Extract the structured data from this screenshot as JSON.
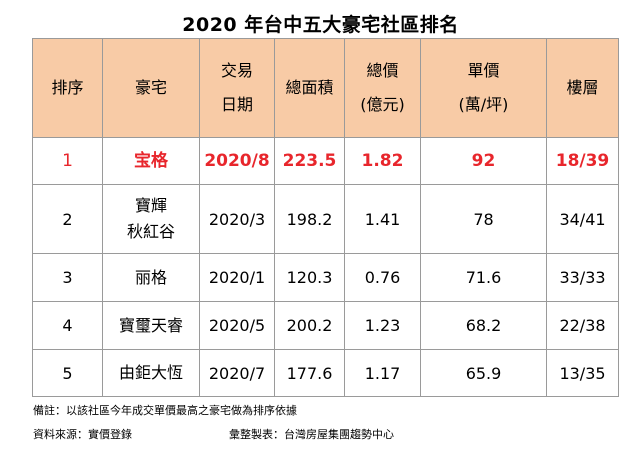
{
  "title": "2020 年台中五大豪宅社區排名",
  "headers": {
    "rank": "排序",
    "name": "豪宅",
    "date_line1": "交易",
    "date_line2": "日期",
    "area": "總面積",
    "total_line1": "總價",
    "total_line2": "(億元)",
    "unit_line1": "單價",
    "unit_line2": "(萬/坪)",
    "floor": "樓層"
  },
  "rows": [
    {
      "rank": "1",
      "name": [
        "宝格"
      ],
      "date": "2020/8",
      "area": "223.5",
      "total": "1.82",
      "unit": "92",
      "floor": "18/39"
    },
    {
      "rank": "2",
      "name": [
        "寶輝",
        "秋紅谷"
      ],
      "date": "2020/3",
      "area": "198.2",
      "total": "1.41",
      "unit": "78",
      "floor": "34/41"
    },
    {
      "rank": "3",
      "name": [
        "丽格"
      ],
      "date": "2020/1",
      "area": "120.3",
      "total": "0.76",
      "unit": "71.6",
      "floor": "33/33"
    },
    {
      "rank": "4",
      "name": [
        "寶璽天睿"
      ],
      "date": "2020/5",
      "area": "200.2",
      "total": "1.23",
      "unit": "68.2",
      "floor": "22/38"
    },
    {
      "rank": "5",
      "name": [
        "由鉅大恆"
      ],
      "date": "2020/7",
      "area": "177.6",
      "total": "1.17",
      "unit": "65.9",
      "floor": "13/35"
    }
  ],
  "notes": {
    "remark": "備註：以該社區今年成交單價最高之豪宅做為排序依據",
    "source": "資料來源：實價登錄",
    "compiler": "彙整製表：台灣房屋集團趨勢中心"
  },
  "colors": {
    "header_bg": "#f8cba6",
    "highlight_text": "#e8262c",
    "border": "#9a9a9a"
  }
}
